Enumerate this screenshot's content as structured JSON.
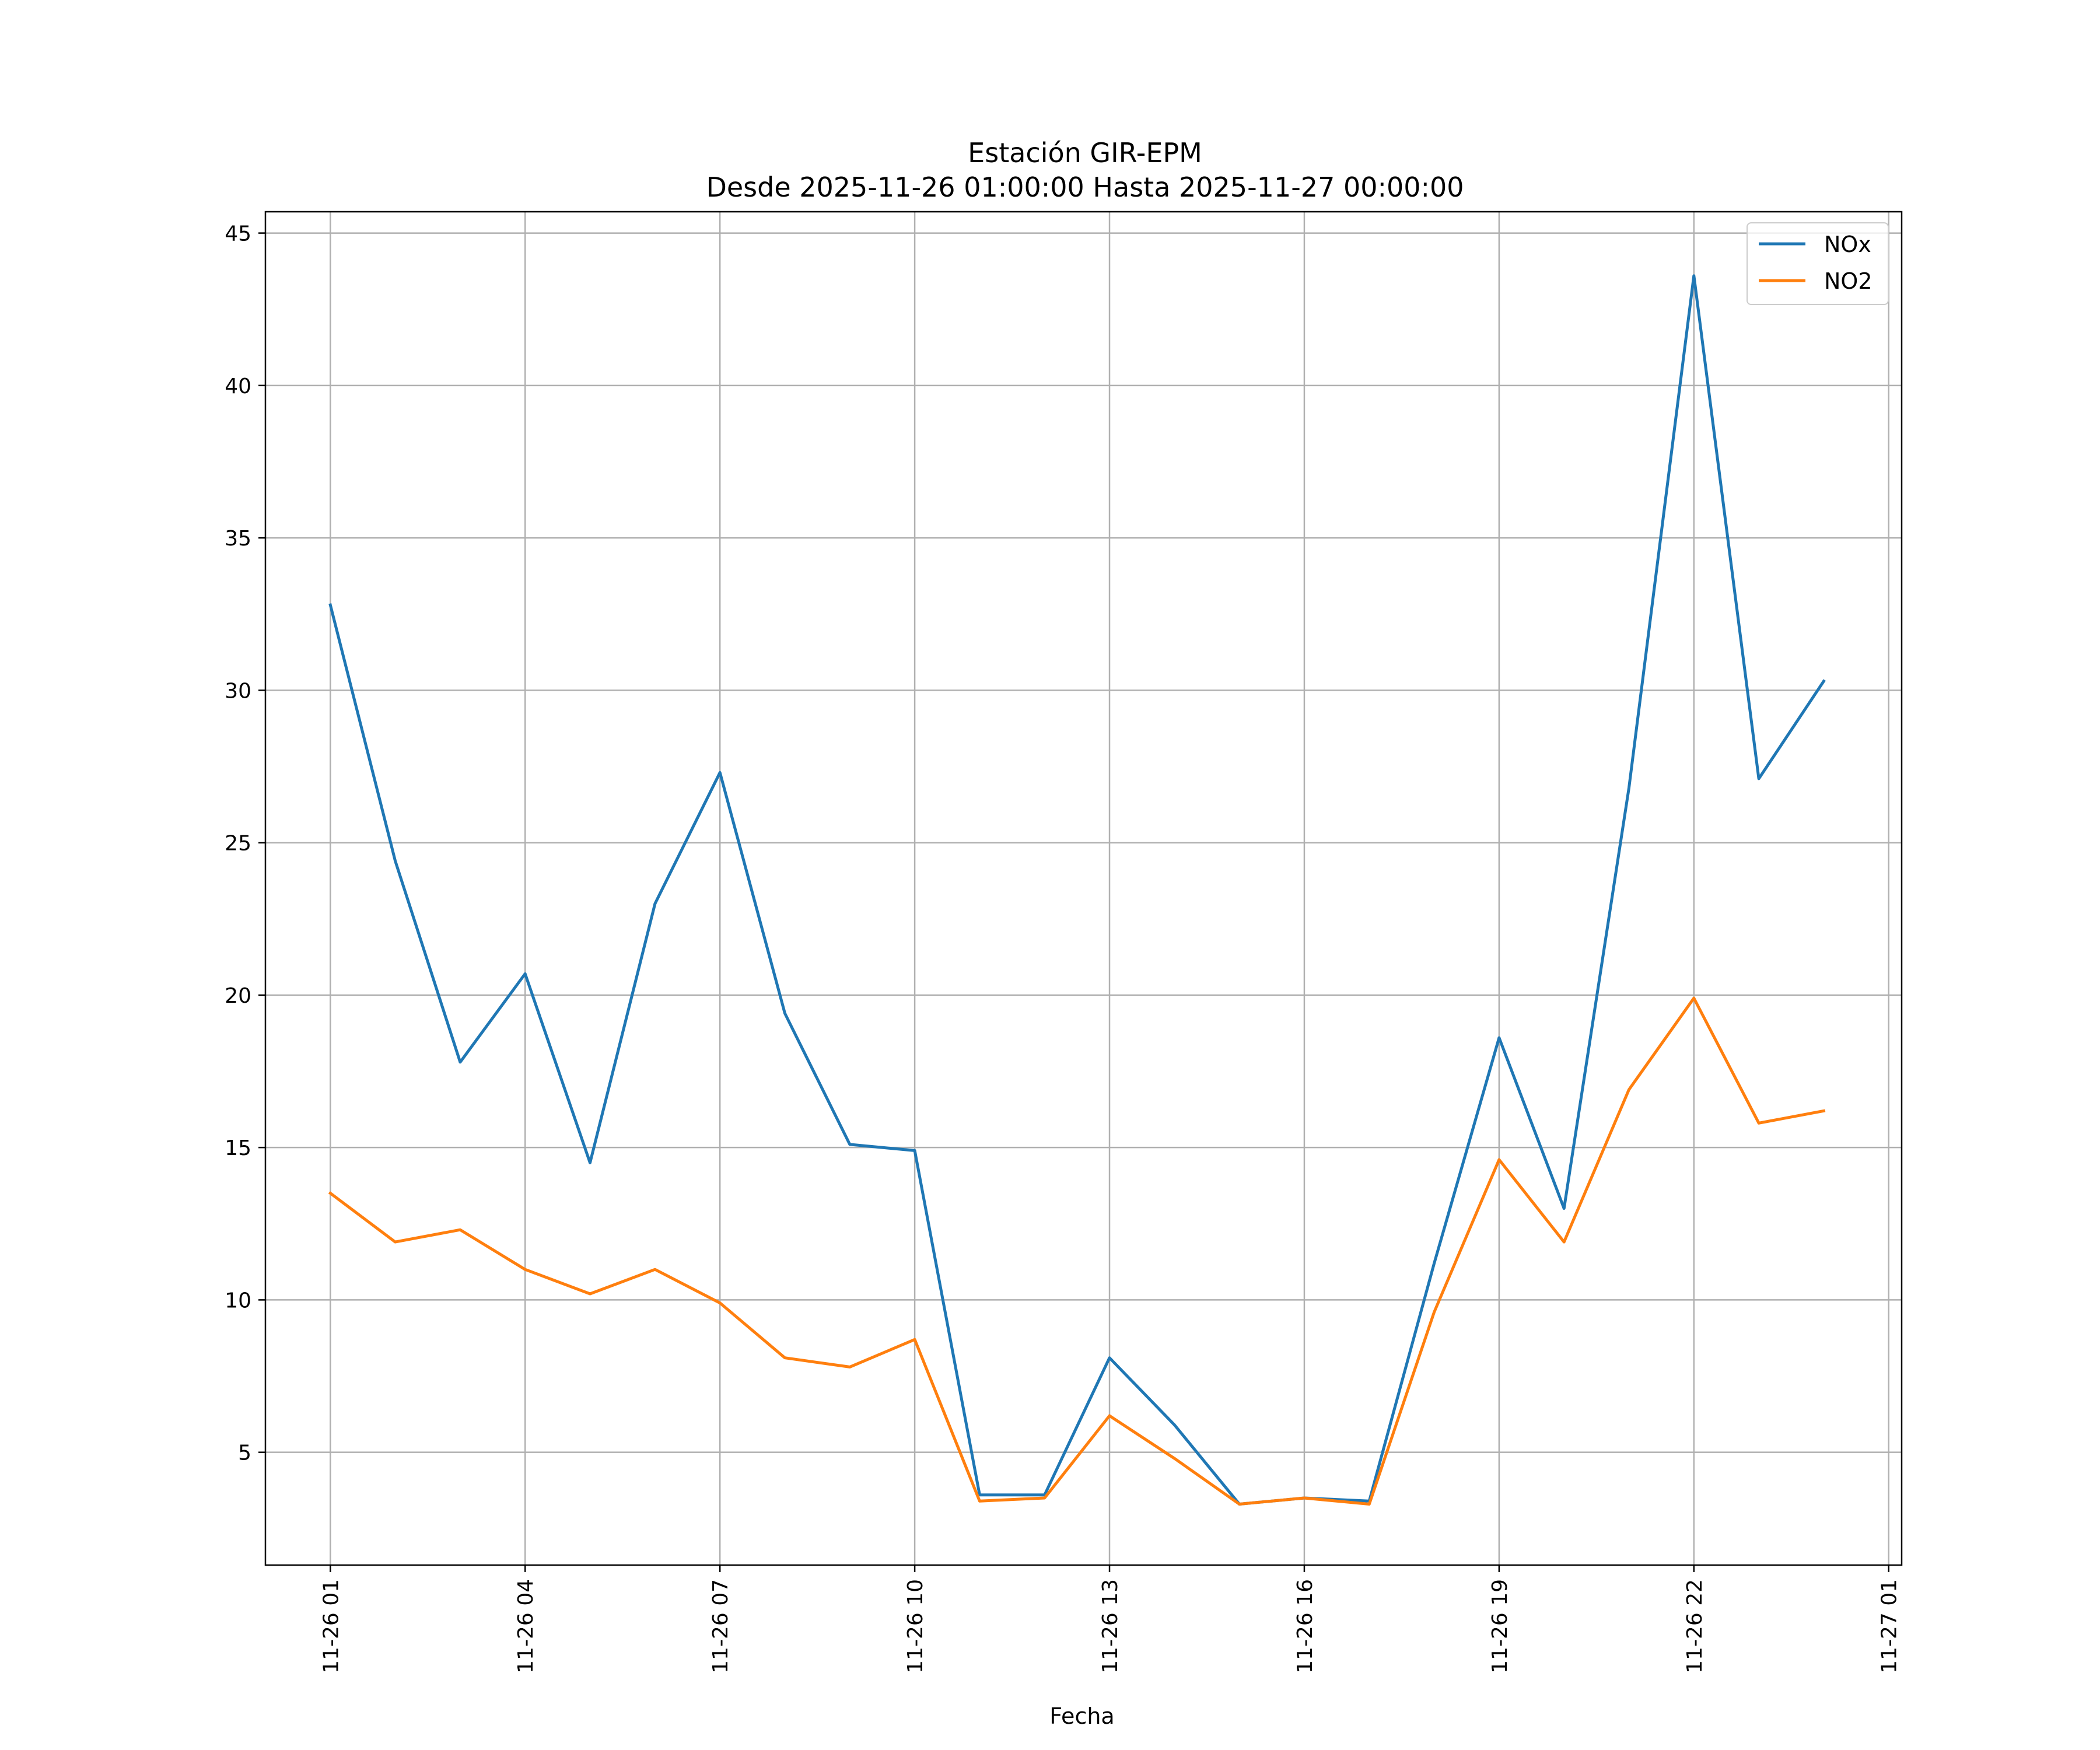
{
  "chart_data": {
    "type": "line",
    "title": "Estación GIR-EPM",
    "subtitle": "Desde 2025-11-26 01:00:00 Hasta 2025-11-27 00:00:00",
    "xlabel": "Fecha",
    "ylabel": "",
    "x_unit": "hours since 2025-11-26 00:00",
    "xlim": [
      0.0,
      25.2
    ],
    "ylim": [
      1.3,
      45.7
    ],
    "x_ticks": [
      {
        "value": 1,
        "label": "11-26 01"
      },
      {
        "value": 4,
        "label": "11-26 04"
      },
      {
        "value": 7,
        "label": "11-26 07"
      },
      {
        "value": 10,
        "label": "11-26 10"
      },
      {
        "value": 13,
        "label": "11-26 13"
      },
      {
        "value": 16,
        "label": "11-26 16"
      },
      {
        "value": 19,
        "label": "11-26 19"
      },
      {
        "value": 22,
        "label": "11-26 22"
      },
      {
        "value": 25,
        "label": "11-27 01"
      }
    ],
    "y_ticks": [
      {
        "value": 5,
        "label": "5"
      },
      {
        "value": 10,
        "label": "10"
      },
      {
        "value": 15,
        "label": "15"
      },
      {
        "value": 20,
        "label": "20"
      },
      {
        "value": 25,
        "label": "25"
      },
      {
        "value": 30,
        "label": "30"
      },
      {
        "value": 35,
        "label": "35"
      },
      {
        "value": 40,
        "label": "40"
      },
      {
        "value": 45,
        "label": "45"
      }
    ],
    "grid": true,
    "legend_position": "top-right",
    "x": [
      1,
      2,
      3,
      4,
      5,
      6,
      7,
      8,
      9,
      10,
      11,
      12,
      13,
      14,
      15,
      16,
      17,
      18,
      19,
      20,
      21,
      22,
      23,
      24
    ],
    "series": [
      {
        "name": "NOx",
        "color": "#1f77b4",
        "values": [
          32.8,
          24.4,
          17.8,
          20.7,
          14.5,
          23.0,
          27.3,
          19.4,
          15.1,
          14.9,
          3.6,
          3.6,
          8.1,
          5.9,
          3.3,
          3.5,
          3.4,
          11.2,
          18.6,
          13.0,
          26.8,
          43.6,
          27.1,
          30.3
        ]
      },
      {
        "name": "NO2",
        "color": "#ff7f0e",
        "values": [
          13.5,
          11.9,
          12.3,
          11.0,
          10.2,
          11.0,
          9.9,
          8.1,
          7.8,
          8.7,
          3.4,
          3.5,
          6.2,
          4.8,
          3.3,
          3.5,
          3.3,
          9.6,
          14.6,
          11.9,
          16.9,
          19.9,
          15.8,
          16.2
        ]
      }
    ]
  }
}
